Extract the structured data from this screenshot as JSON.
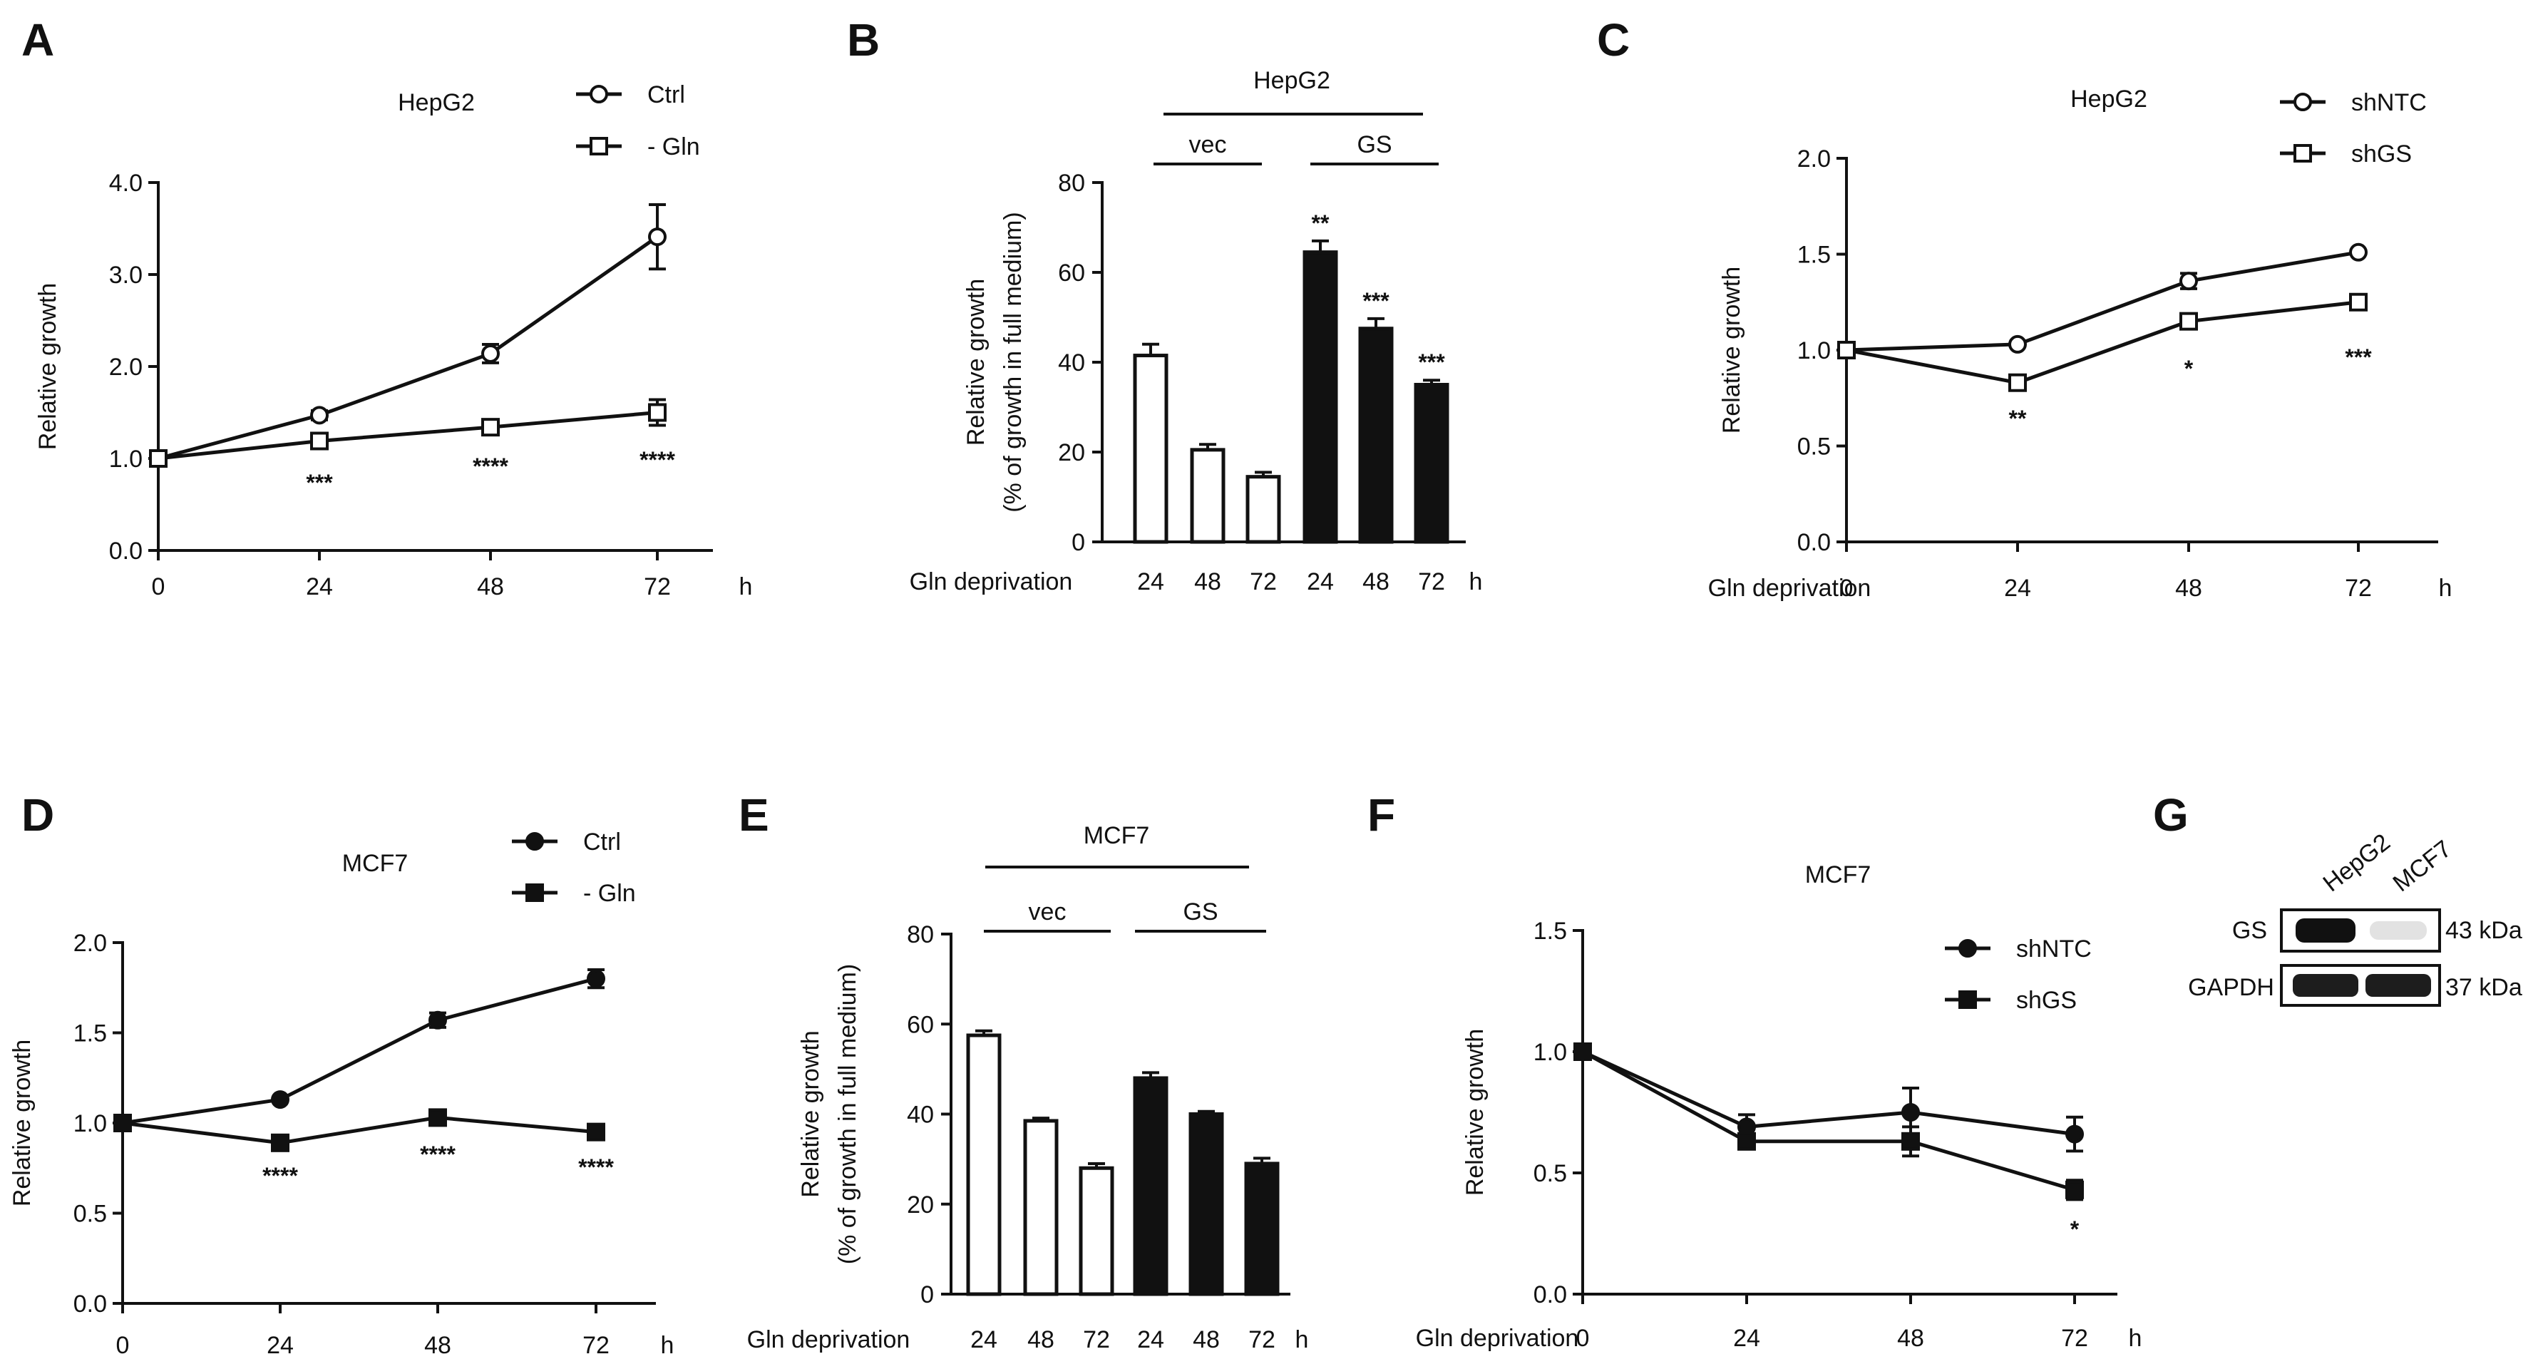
{
  "panel_labels": [
    "A",
    "B",
    "C",
    "D",
    "E",
    "F",
    "G"
  ],
  "chart_data": [
    {
      "panel": "A",
      "type": "line",
      "title": "HepG2",
      "x": [
        0,
        24,
        48,
        72
      ],
      "x_ticks": [
        "0",
        "24",
        "48",
        "72"
      ],
      "x_unit": "h",
      "xlabel": "",
      "ylabel": "Relative growth",
      "ylim": [
        0,
        4
      ],
      "y_ticks": [
        "0.0",
        "1.0",
        "2.0",
        "3.0",
        "4.0"
      ],
      "legend_position": "top-right",
      "series": [
        {
          "name": "Ctrl",
          "marker": "open-circle",
          "values": [
            1.0,
            1.47,
            2.14,
            3.41
          ],
          "errors": [
            0.03,
            0.05,
            0.1,
            0.35
          ]
        },
        {
          "name": "- Gln",
          "marker": "open-square",
          "values": [
            1.0,
            1.19,
            1.34,
            1.5
          ],
          "errors": [
            0.03,
            0.05,
            0.06,
            0.14
          ]
        }
      ],
      "annotations": [
        {
          "x": 24,
          "text": "***"
        },
        {
          "x": 48,
          "text": "****"
        },
        {
          "x": 72,
          "text": "****"
        }
      ]
    },
    {
      "panel": "B",
      "type": "bar",
      "title": "HepG2",
      "groups": [
        "vec",
        "GS"
      ],
      "categories": [
        "24",
        "48",
        "72",
        "24",
        "48",
        "72"
      ],
      "x_unit": "h",
      "xlabel": "Gln deprivation",
      "ylabel": "Relative growth",
      "ylabel2": "(% of growth in full medium)",
      "ylim": [
        0,
        80
      ],
      "y_ticks": [
        "0",
        "20",
        "40",
        "60",
        "80"
      ],
      "fills": [
        "open",
        "open",
        "open",
        "filled",
        "filled",
        "filled"
      ],
      "values": [
        41.5,
        20.5,
        14.5,
        64.5,
        47.5,
        35.0
      ],
      "errors": [
        2.5,
        1.2,
        1.0,
        2.5,
        2.2,
        1.0
      ],
      "annotations": [
        "",
        "",
        "",
        "**",
        "***",
        "***"
      ]
    },
    {
      "panel": "C",
      "type": "line",
      "title": "HepG2",
      "x": [
        0,
        24,
        48,
        72
      ],
      "x_ticks": [
        "0",
        "24",
        "48",
        "72"
      ],
      "x_unit": "h",
      "xlabel": "Gln deprivation",
      "ylabel": "Relative growth",
      "ylim": [
        0,
        2
      ],
      "y_ticks": [
        "0.0",
        "0.5",
        "1.0",
        "1.5",
        "2.0"
      ],
      "legend_position": "top-right",
      "series": [
        {
          "name": "shNTC",
          "marker": "open-circle",
          "values": [
            1.0,
            1.03,
            1.36,
            1.51
          ],
          "errors": [
            0.02,
            0.02,
            0.04,
            0.02
          ]
        },
        {
          "name": "shGS",
          "marker": "open-square",
          "values": [
            1.0,
            0.83,
            1.15,
            1.25
          ],
          "errors": [
            0.02,
            0.02,
            0.02,
            0.02
          ]
        }
      ],
      "annotations": [
        {
          "x": 24,
          "text": "**"
        },
        {
          "x": 48,
          "text": "*"
        },
        {
          "x": 72,
          "text": "***"
        }
      ]
    },
    {
      "panel": "D",
      "type": "line",
      "title": "MCF7",
      "x": [
        0,
        24,
        48,
        72
      ],
      "x_ticks": [
        "0",
        "24",
        "48",
        "72"
      ],
      "x_unit": "h",
      "xlabel": "",
      "ylabel": "Relative growth",
      "ylim": [
        0,
        2
      ],
      "y_ticks": [
        "0.0",
        "0.5",
        "1.0",
        "1.5",
        "2.0"
      ],
      "legend_position": "top-right",
      "series": [
        {
          "name": "Ctrl",
          "marker": "filled-circle",
          "values": [
            1.0,
            1.13,
            1.57,
            1.8
          ],
          "errors": [
            0.02,
            0.02,
            0.04,
            0.05
          ]
        },
        {
          "name": "- Gln",
          "marker": "filled-square",
          "values": [
            1.0,
            0.89,
            1.03,
            0.95
          ],
          "errors": [
            0.02,
            0.02,
            0.02,
            0.02
          ]
        }
      ],
      "annotations": [
        {
          "x": 24,
          "text": "****"
        },
        {
          "x": 48,
          "text": "****"
        },
        {
          "x": 72,
          "text": "****"
        }
      ]
    },
    {
      "panel": "E",
      "type": "bar",
      "title": "MCF7",
      "groups": [
        "vec",
        "GS"
      ],
      "categories": [
        "24",
        "48",
        "72",
        "24",
        "48",
        "72"
      ],
      "x_unit": "h",
      "xlabel": "Gln deprivation",
      "ylabel": "Relative growth",
      "ylabel2": "(% of growth in full medium)",
      "ylim": [
        0,
        80
      ],
      "y_ticks": [
        "0",
        "20",
        "40",
        "60",
        "80"
      ],
      "fills": [
        "open",
        "open",
        "open",
        "filled",
        "filled",
        "filled"
      ],
      "values": [
        57.5,
        38.5,
        28.0,
        48.0,
        40.0,
        29.0
      ],
      "errors": [
        1.0,
        0.6,
        1.0,
        1.2,
        0.6,
        1.2
      ],
      "annotations": [
        "",
        "",
        "",
        "",
        "",
        ""
      ]
    },
    {
      "panel": "F",
      "type": "line",
      "title": "MCF7",
      "x": [
        0,
        24,
        48,
        72
      ],
      "x_ticks": [
        "0",
        "24",
        "48",
        "72"
      ],
      "x_unit": "h",
      "xlabel": "Gln deprivation",
      "ylabel": "Relative growth",
      "ylim": [
        0,
        1.5
      ],
      "y_ticks": [
        "0.0",
        "0.5",
        "1.0",
        "1.5"
      ],
      "legend_position": "top-right",
      "series": [
        {
          "name": "shNTC",
          "marker": "filled-circle",
          "values": [
            1.0,
            0.69,
            0.75,
            0.66
          ],
          "errors": [
            0.02,
            0.05,
            0.1,
            0.07
          ]
        },
        {
          "name": "shGS",
          "marker": "filled-square",
          "values": [
            1.0,
            0.63,
            0.63,
            0.43
          ],
          "errors": [
            0.02,
            0.03,
            0.06,
            0.04
          ]
        }
      ],
      "annotations": [
        {
          "x": 72,
          "text": "*",
          "below": true
        }
      ]
    }
  ],
  "western_blot": {
    "panel": "G",
    "lanes": [
      "HepG2",
      "MCF7"
    ],
    "rows": [
      {
        "protein": "GS",
        "size": "43 kDa",
        "intensities": [
          1.0,
          0.12
        ]
      },
      {
        "protein": "GAPDH",
        "size": "37 kDa",
        "intensities": [
          0.95,
          0.95
        ]
      }
    ]
  }
}
